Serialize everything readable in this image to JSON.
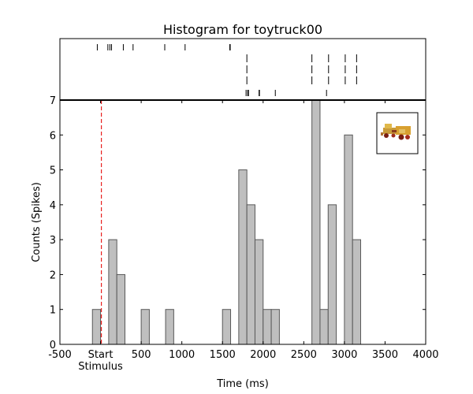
{
  "chart_data": {
    "type": "bar",
    "title": "Histogram for toytruck00",
    "xlabel": "Time (ms)",
    "ylabel": "Counts (Spikes)",
    "xlim": [
      -500,
      4000
    ],
    "ylim": [
      0,
      7
    ],
    "xticks": [
      {
        "value": -500,
        "label": "-500"
      },
      {
        "value": 0,
        "label": "Start",
        "sublabel": "Stimulus"
      },
      {
        "value": 500,
        "label": "500"
      },
      {
        "value": 1000,
        "label": "1000"
      },
      {
        "value": 1500,
        "label": "1500"
      },
      {
        "value": 2000,
        "label": "2000"
      },
      {
        "value": 2500,
        "label": "2500"
      },
      {
        "value": 3000,
        "label": "3000"
      },
      {
        "value": 3500,
        "label": "3500"
      },
      {
        "value": 4000,
        "label": "4000"
      }
    ],
    "yticks": [
      0,
      1,
      2,
      3,
      4,
      5,
      6,
      7
    ],
    "bin_width": 100,
    "bins": [
      {
        "start": -100,
        "count": 1
      },
      {
        "start": 100,
        "count": 3
      },
      {
        "start": 200,
        "count": 2
      },
      {
        "start": 500,
        "count": 1
      },
      {
        "start": 800,
        "count": 1
      },
      {
        "start": 1500,
        "count": 1
      },
      {
        "start": 1700,
        "count": 5
      },
      {
        "start": 1800,
        "count": 4
      },
      {
        "start": 1900,
        "count": 3
      },
      {
        "start": 2000,
        "count": 1
      },
      {
        "start": 2100,
        "count": 1
      },
      {
        "start": 2600,
        "count": 7
      },
      {
        "start": 2700,
        "count": 1
      },
      {
        "start": 2800,
        "count": 4
      },
      {
        "start": 3000,
        "count": 6
      },
      {
        "start": 3100,
        "count": 3
      }
    ],
    "stimulus_marker": {
      "x": 10,
      "color": "#e8201f",
      "style": "dashed"
    },
    "raster_trials": [
      [
        -40,
        90,
        115,
        135,
        280,
        400,
        790,
        1040,
        1590,
        1595
      ],
      [
        1800,
        2600,
        2805,
        3010,
        3150
      ],
      [
        1790,
        1810,
        1820,
        1950,
        1955,
        2150,
        2780
      ]
    ],
    "colors": {
      "bar_fill": "#bfbfbf",
      "bar_edge": "#595959",
      "stimulus_line": "#e8201f"
    },
    "grid": false,
    "legend": "none"
  }
}
